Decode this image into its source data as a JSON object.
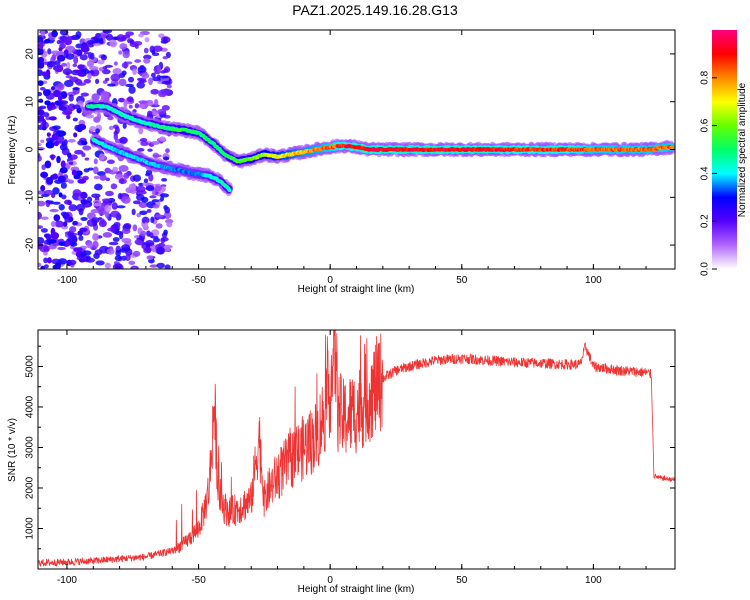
{
  "title": "PAZ1.2025.149.16.28.G13",
  "chart_data": [
    {
      "type": "heatmap",
      "xlabel": "Height of straight line (km)",
      "ylabel": "Frequency (Hz)",
      "xlim": [
        -111,
        131
      ],
      "ylim": [
        -25,
        25
      ],
      "xticks": [
        -100,
        -50,
        0,
        50,
        100
      ],
      "yticks": [
        -20,
        -10,
        0,
        10,
        20
      ],
      "colorbar": {
        "label": "Normalized spectral amplitude",
        "range": [
          0,
          1
        ],
        "ticks": [
          0.0,
          0.2,
          0.4,
          0.6,
          0.8
        ],
        "colors": [
          "#ffffff",
          "#b266ff",
          "#5500ff",
          "#0000ff",
          "#00ffff",
          "#00ff66",
          "#66ff00",
          "#ffff00",
          "#ff8800",
          "#ff0000",
          "#ff0080"
        ]
      },
      "ridge": {
        "x": [
          -92,
          -85,
          -78,
          -70,
          -62,
          -55,
          -50,
          -45,
          -40,
          -35,
          -30,
          -25,
          -20,
          -15,
          -10,
          -5,
          0,
          5,
          10,
          15,
          20,
          30,
          40,
          50,
          60,
          70,
          80,
          90,
          100,
          110,
          120,
          130
        ],
        "freq": [
          9,
          9,
          7,
          5.5,
          4.5,
          4,
          3.5,
          1.5,
          -1,
          -2.5,
          -2,
          -1,
          -1.5,
          -1,
          -0.5,
          0,
          0.5,
          0.8,
          0.5,
          0,
          0,
          0,
          0,
          0,
          0,
          0,
          0,
          0,
          0,
          0,
          0,
          0.5
        ],
        "amplitude": [
          0.5,
          0.45,
          0.45,
          0.45,
          0.5,
          0.55,
          0.5,
          0.5,
          0.5,
          0.55,
          0.6,
          0.65,
          0.7,
          0.75,
          0.8,
          0.82,
          0.85,
          0.9,
          0.92,
          0.95,
          0.95,
          0.95,
          0.95,
          0.95,
          0.95,
          0.9,
          0.9,
          0.9,
          0.85,
          0.85,
          0.85,
          0.85
        ]
      },
      "lower_branch": {
        "x": [
          -90,
          -82,
          -75,
          -68,
          -60,
          -52,
          -46,
          -42,
          -38
        ],
        "freq": [
          2,
          0,
          -1.5,
          -3,
          -4,
          -5,
          -5.5,
          -6.5,
          -8.5
        ],
        "amplitude": [
          0.45,
          0.4,
          0.4,
          0.4,
          0.35,
          0.35,
          0.4,
          0.45,
          0.45
        ]
      }
    },
    {
      "type": "line",
      "xlabel": "Height of straight line (km)",
      "ylabel": "SNR (10 * v/v)",
      "xlim": [
        -111,
        131
      ],
      "ylim": [
        0,
        5900
      ],
      "xticks": [
        -100,
        -50,
        0,
        50,
        100
      ],
      "yticks": [
        1000,
        2000,
        3000,
        4000,
        5000
      ],
      "color": "#ee3333",
      "series": [
        {
          "x": [
            -111,
            -100,
            -90,
            -80,
            -70,
            -60,
            -55,
            -50,
            -48,
            -46,
            -44,
            -43,
            -42,
            -40,
            -38,
            -35,
            -30,
            -27,
            -25,
            -23,
            -20,
            -15,
            -10,
            -5,
            -2,
            0,
            2,
            3,
            5,
            10,
            15,
            20,
            25,
            30,
            40,
            50,
            60,
            70,
            80,
            90,
            95,
            97,
            100,
            110,
            120,
            122,
            123,
            125,
            131
          ],
          "y": [
            150,
            170,
            200,
            250,
            300,
            450,
            650,
            1000,
            1400,
            2000,
            4100,
            2600,
            1800,
            1500,
            1400,
            1500,
            1700,
            3300,
            1700,
            2000,
            2300,
            2700,
            3000,
            3300,
            3900,
            4500,
            5500,
            3900,
            3700,
            3900,
            4300,
            4700,
            4900,
            5000,
            5150,
            5200,
            5150,
            5100,
            5080,
            5050,
            5050,
            5500,
            5000,
            4900,
            4850,
            4800,
            2300,
            2250,
            2200
          ]
        }
      ]
    }
  ]
}
